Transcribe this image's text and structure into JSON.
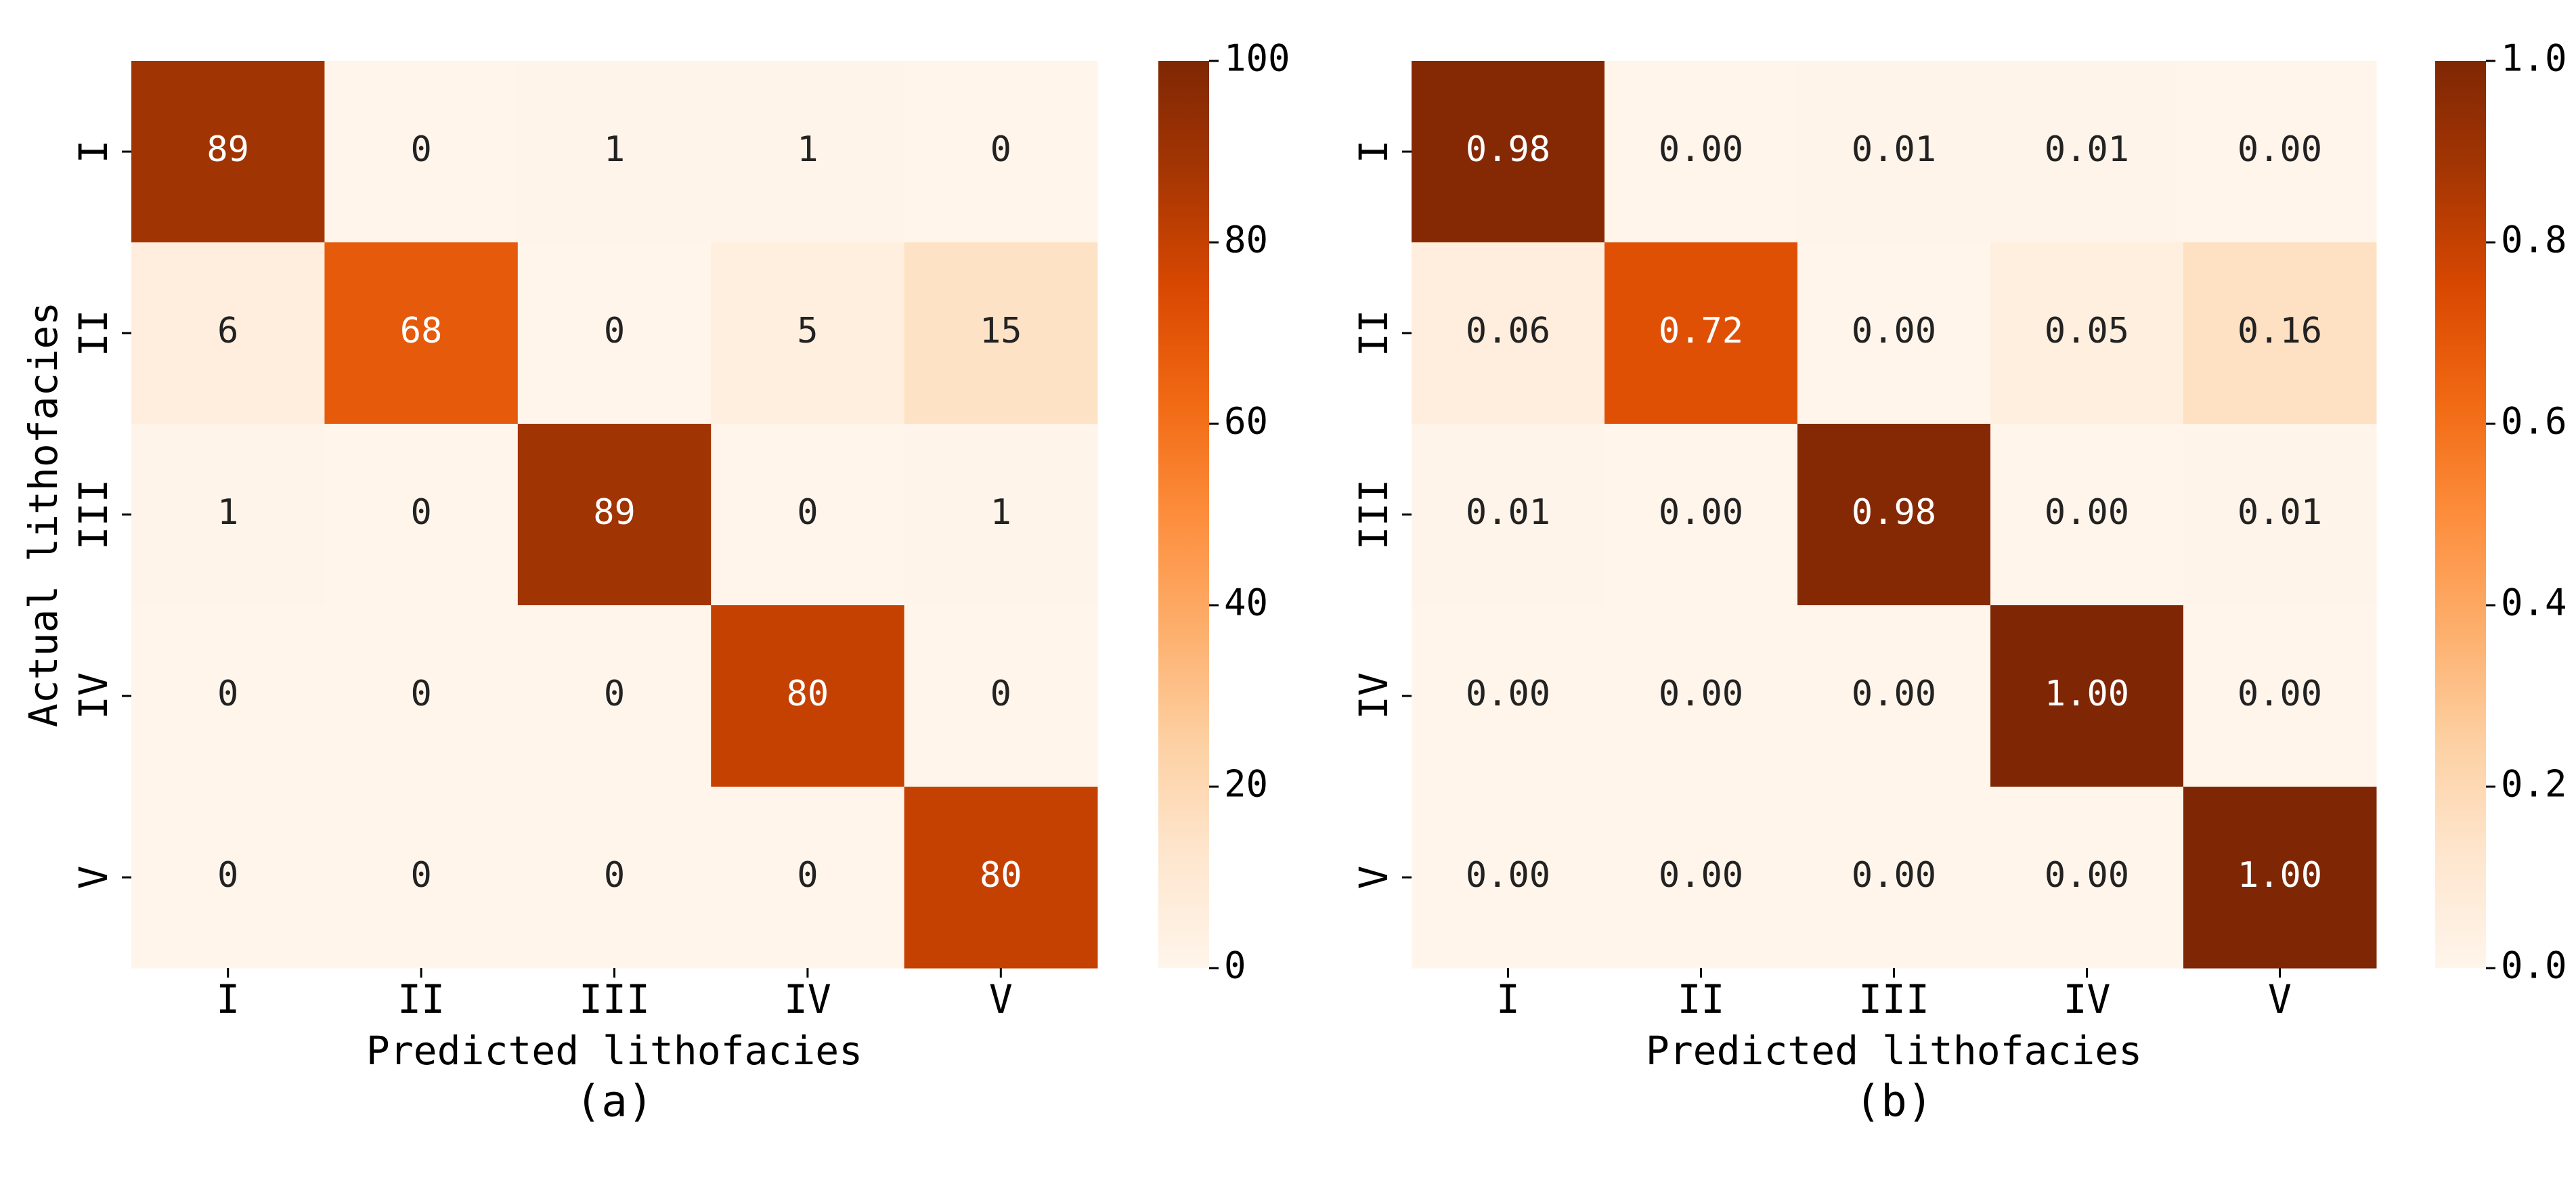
{
  "chart_data": [
    {
      "type": "heatmap",
      "x_categories": [
        "I",
        "II",
        "III",
        "IV",
        "V"
      ],
      "y_categories": [
        "I",
        "II",
        "III",
        "IV",
        "V"
      ],
      "values": [
        [
          89,
          0,
          1,
          1,
          0
        ],
        [
          6,
          68,
          0,
          5,
          15
        ],
        [
          1,
          0,
          89,
          0,
          1
        ],
        [
          0,
          0,
          0,
          80,
          0
        ],
        [
          0,
          0,
          0,
          0,
          80
        ]
      ],
      "xlabel": "Predicted lithofacies",
      "ylabel": "Actual lithofacies",
      "caption": "(a)",
      "clim": [
        0,
        100
      ],
      "cticks": [
        0,
        20,
        40,
        60,
        80,
        100
      ],
      "colormap": [
        "#fff5eb",
        "#fee6ce",
        "#fdd0a2",
        "#fdae6b",
        "#fd8d3c",
        "#f16913",
        "#d94801",
        "#a63603",
        "#7f2704"
      ]
    },
    {
      "type": "heatmap",
      "x_categories": [
        "I",
        "II",
        "III",
        "IV",
        "V"
      ],
      "y_categories": [
        "I",
        "II",
        "III",
        "IV",
        "V"
      ],
      "values": [
        [
          0.98,
          0,
          0.01,
          0.01,
          0
        ],
        [
          0.06,
          0.72,
          0,
          0.05,
          0.16
        ],
        [
          0.01,
          0,
          0.98,
          0,
          0.01
        ],
        [
          0,
          0,
          0,
          1,
          0
        ],
        [
          0,
          0,
          0,
          0,
          1
        ]
      ],
      "value_labels": [
        [
          "0.98",
          "0.00",
          "0.01",
          "0.01",
          "0.00"
        ],
        [
          "0.06",
          "0.72",
          "0.00",
          "0.05",
          "0.16"
        ],
        [
          "0.01",
          "0.00",
          "0.98",
          "0.00",
          "0.01"
        ],
        [
          "0.00",
          "0.00",
          "0.00",
          "1.00",
          "0.00"
        ],
        [
          "0.00",
          "0.00",
          "0.00",
          "0.00",
          "1.00"
        ]
      ],
      "xlabel": "Predicted lithofacies",
      "caption": "(b)",
      "clim": [
        0,
        1
      ],
      "cticks": [
        {
          "value": 0,
          "label": "0.0"
        },
        0.2,
        0.4,
        0.6,
        0.8,
        {
          "value": 1,
          "label": "1.0"
        }
      ],
      "colormap": [
        "#fff5eb",
        "#fee6ce",
        "#fdd0a2",
        "#fdae6b",
        "#fd8d3c",
        "#f16913",
        "#d94801",
        "#a63603",
        "#7f2704"
      ]
    }
  ]
}
